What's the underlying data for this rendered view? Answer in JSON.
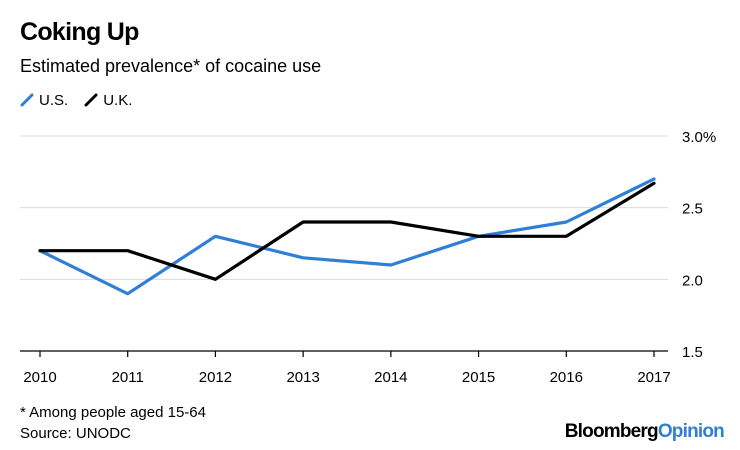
{
  "title": "Coking Up",
  "subtitle": "Estimated prevalence* of cocaine use",
  "footnote": "* Among people aged 15-64",
  "source": "Source: UNODC",
  "brand": {
    "part1": "Bloomberg",
    "part2": "Opinion"
  },
  "colors": {
    "us": "#2f7fd7",
    "uk": "#000000",
    "grid": "#dcdcdc",
    "axis": "#000000",
    "brand_opinion": "#2f7fd7"
  },
  "chart_data": {
    "type": "line",
    "title": "Coking Up",
    "subtitle": "Estimated prevalence* of cocaine use",
    "x": [
      "2010",
      "2011",
      "2012",
      "2013",
      "2014",
      "2015",
      "2016",
      "2017"
    ],
    "series": [
      {
        "name": "U.S.",
        "color": "#2f7fd7",
        "values": [
          2.2,
          1.9,
          2.3,
          2.15,
          2.1,
          2.3,
          2.4,
          2.7
        ]
      },
      {
        "name": "U.K.",
        "color": "#000000",
        "values": [
          2.2,
          2.2,
          2.0,
          2.4,
          2.4,
          2.3,
          2.3,
          2.67
        ]
      }
    ],
    "ylim": [
      1.5,
      3.0
    ],
    "yticks": [
      1.5,
      2.0,
      2.5,
      3.0
    ],
    "ytick_labels": [
      "1.5",
      "2.0",
      "2.5",
      "3.0%"
    ],
    "xlabel": "",
    "ylabel": "",
    "grid": true,
    "legend": "top-left"
  }
}
